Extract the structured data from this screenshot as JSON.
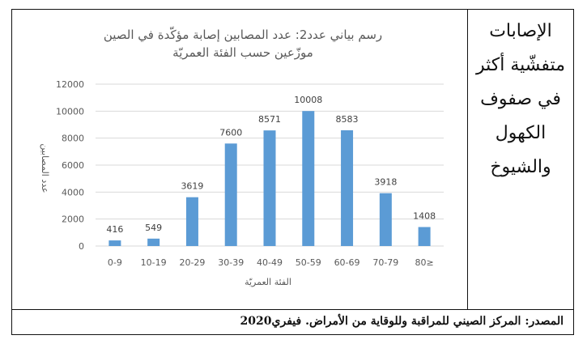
{
  "side_text": [
    "الإصابات",
    "متفشّية أكثر",
    "في صفوف",
    "الكهول",
    "والشيوخ"
  ],
  "source": "المصدر: المركز الصيني للمراقبة وللوقاية من الأمراض. فيفري2020",
  "colors": {
    "bar": "#5b9bd5",
    "grid": "#d9d9d9",
    "text": "#595959"
  },
  "chart_data": {
    "type": "bar",
    "title": "رسم بياني عدد2: عدد المصابين إصابة مؤكّدة في الصين",
    "subtitle": "موزّعين حسب الفئة العمريّة",
    "xlabel": "الفئة العمريّة",
    "ylabel": "عدد المصابين",
    "categories": [
      "0-9",
      "10-19",
      "20-29",
      "30-39",
      "40-49",
      "50-59",
      "60-69",
      "70-79",
      "80≥"
    ],
    "values": [
      416,
      549,
      3619,
      7600,
      8571,
      10008,
      8583,
      3918,
      1408
    ],
    "ylim": [
      0,
      12000
    ],
    "yticks": [
      0,
      2000,
      4000,
      6000,
      8000,
      10000,
      12000
    ],
    "grid": true,
    "legend": "none"
  }
}
